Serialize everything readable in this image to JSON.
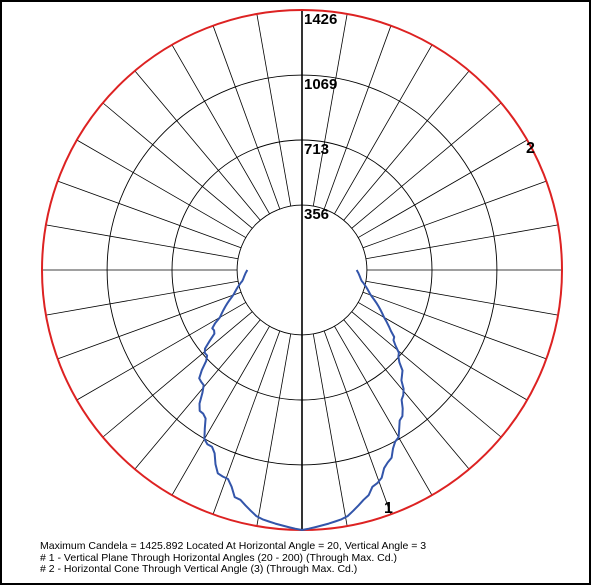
{
  "chart_data": {
    "type": "polar",
    "max_candela": 1426,
    "ring_labels": [
      "356",
      "713",
      "1069",
      "1426"
    ],
    "ring_values": [
      356,
      713,
      1069,
      1426
    ],
    "angular_step_deg": 10,
    "series": [
      {
        "name": "1",
        "color": "#3355aa",
        "angle_deg": [
          0,
          10,
          20,
          30,
          40,
          50,
          60,
          70,
          80,
          90
        ],
        "candela": [
          1426,
          1380,
          1230,
          1050,
          860,
          680,
          520,
          400,
          330,
          300
        ]
      },
      {
        "name": "2",
        "color": "#dd2222",
        "angle_deg": [
          0,
          360
        ],
        "candela": [
          1426,
          1426
        ]
      }
    ],
    "curve_tags": [
      "1",
      "2"
    ]
  },
  "legend": {
    "line1": "Maximum Candela = 1425.892   Located At Horizontal Angle = 20, Vertical Angle = 3",
    "line2": "# 1 - Vertical Plane Through Horizontal Angles (20 - 200) (Through Max. Cd.)",
    "line3": "# 2 - Horizontal Cone Through Vertical Angle (3) (Through Max. Cd.)"
  }
}
